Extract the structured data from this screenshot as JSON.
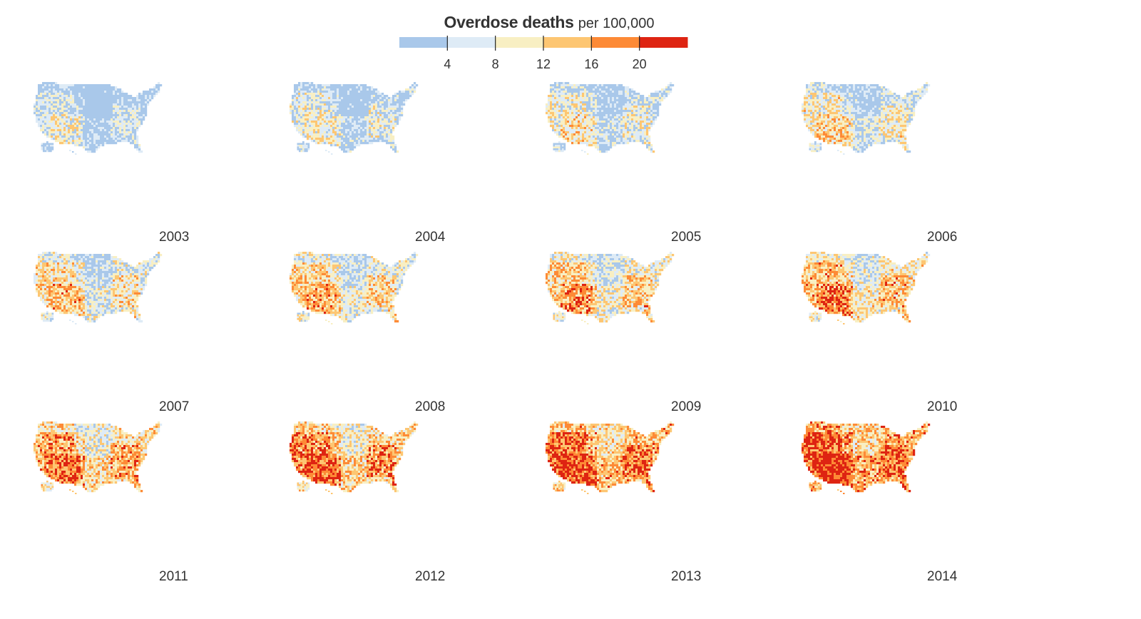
{
  "legend": {
    "title_bold": "Overdose deaths",
    "title_rest": "per 100,000",
    "ticks": [
      "4",
      "8",
      "12",
      "16",
      "20"
    ],
    "colors": [
      "#a9c8ea",
      "#deebf6",
      "#f8efc3",
      "#fdc672",
      "#fd8a36",
      "#de2412"
    ]
  },
  "chart_data": {
    "type": "choropleth small multiples",
    "measure": "Overdose deaths per 100,000",
    "bins": [
      {
        "range": "<4",
        "color": "#a9c8ea"
      },
      {
        "range": "4-8",
        "color": "#deebf6"
      },
      {
        "range": "8-12",
        "color": "#f8efc3"
      },
      {
        "range": "12-16",
        "color": "#fdc672"
      },
      {
        "range": "16-20",
        "color": "#fd8a36"
      },
      {
        "range": ">20",
        "color": "#de2412"
      }
    ],
    "panels": [
      {
        "year": "2003",
        "intensity": 0.05
      },
      {
        "year": "2004",
        "intensity": 0.12
      },
      {
        "year": "2005",
        "intensity": 0.2
      },
      {
        "year": "2006",
        "intensity": 0.28
      },
      {
        "year": "2007",
        "intensity": 0.36
      },
      {
        "year": "2008",
        "intensity": 0.42
      },
      {
        "year": "2009",
        "intensity": 0.48
      },
      {
        "year": "2010",
        "intensity": 0.54
      },
      {
        "year": "2011",
        "intensity": 0.62
      },
      {
        "year": "2012",
        "intensity": 0.7
      },
      {
        "year": "2013",
        "intensity": 0.78
      },
      {
        "year": "2014",
        "intensity": 0.86
      }
    ]
  }
}
